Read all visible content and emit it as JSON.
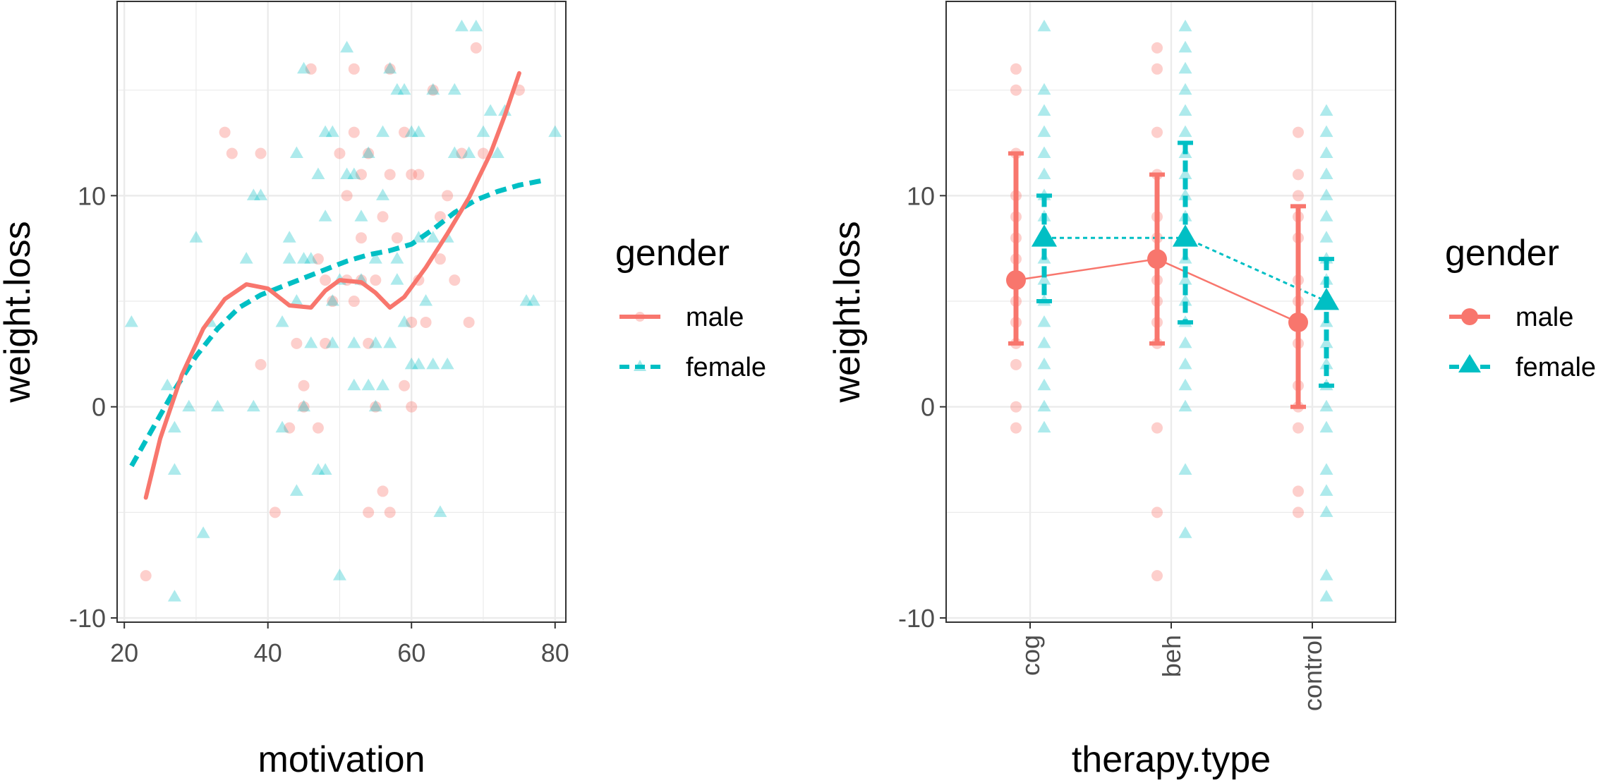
{
  "colors": {
    "male": "#F8766D",
    "female": "#00BFC4",
    "grid": "#EBEBEB",
    "border": "#333333",
    "tick_text": "#4D4D4D"
  },
  "chart_data": [
    {
      "type": "scatter",
      "xlabel": "motivation",
      "ylabel": "weight.loss",
      "xlim": [
        19,
        81.5
      ],
      "ylim": [
        -10.2,
        19.2
      ],
      "x_ticks": [
        "20",
        "40",
        "60",
        "80"
      ],
      "y_ticks": [
        "-10",
        "0",
        "10"
      ],
      "grid": true,
      "legend": {
        "title": "gender",
        "position": "right",
        "entries": [
          "male",
          "female"
        ]
      },
      "series": [
        {
          "name": "male",
          "points": [
            [
              23,
              -8
            ],
            [
              34,
              13
            ],
            [
              35,
              12
            ],
            [
              39,
              12
            ],
            [
              39,
              2
            ],
            [
              41,
              -5
            ],
            [
              43,
              -1
            ],
            [
              44,
              3
            ],
            [
              45,
              1
            ],
            [
              45,
              0
            ],
            [
              46,
              16
            ],
            [
              47,
              -1
            ],
            [
              47,
              7
            ],
            [
              48,
              6
            ],
            [
              48,
              3
            ],
            [
              49,
              5
            ],
            [
              50,
              12
            ],
            [
              51,
              10
            ],
            [
              51,
              6
            ],
            [
              52,
              16
            ],
            [
              52,
              13
            ],
            [
              52,
              5
            ],
            [
              53,
              11
            ],
            [
              53,
              8
            ],
            [
              53,
              6
            ],
            [
              54,
              12
            ],
            [
              54,
              3
            ],
            [
              54,
              -5
            ],
            [
              55,
              0
            ],
            [
              55,
              6
            ],
            [
              56,
              9
            ],
            [
              56,
              -4
            ],
            [
              57,
              16
            ],
            [
              57,
              -5
            ],
            [
              57,
              11
            ],
            [
              58,
              8
            ],
            [
              59,
              13
            ],
            [
              59,
              1
            ],
            [
              60,
              11
            ],
            [
              60,
              0
            ],
            [
              60,
              4
            ],
            [
              61,
              11
            ],
            [
              61,
              6
            ],
            [
              62,
              4
            ],
            [
              63,
              15
            ],
            [
              64,
              9
            ],
            [
              64,
              7
            ],
            [
              65,
              10
            ],
            [
              66,
              6
            ],
            [
              67,
              12
            ],
            [
              68,
              4
            ],
            [
              69,
              17
            ],
            [
              70,
              12
            ],
            [
              75,
              15
            ]
          ],
          "smooth": [
            [
              23,
              -4.3
            ],
            [
              25,
              -1.5
            ],
            [
              28,
              1.5
            ],
            [
              31,
              3.7
            ],
            [
              34,
              5.1
            ],
            [
              37,
              5.8
            ],
            [
              40,
              5.6
            ],
            [
              43,
              4.8
            ],
            [
              46,
              4.7
            ],
            [
              48,
              5.5
            ],
            [
              50,
              6.0
            ],
            [
              53,
              5.9
            ],
            [
              55,
              5.4
            ],
            [
              57,
              4.7
            ],
            [
              59,
              5.2
            ],
            [
              62,
              6.6
            ],
            [
              65,
              8.2
            ],
            [
              68,
              9.9
            ],
            [
              71,
              12.0
            ],
            [
              73,
              13.8
            ],
            [
              75,
              15.8
            ]
          ]
        },
        {
          "name": "female",
          "points": [
            [
              21,
              4
            ],
            [
              26,
              1
            ],
            [
              27,
              -1
            ],
            [
              27,
              -3
            ],
            [
              27,
              -9
            ],
            [
              29,
              0
            ],
            [
              30,
              8
            ],
            [
              31,
              -6
            ],
            [
              32,
              4
            ],
            [
              33,
              0
            ],
            [
              37,
              7
            ],
            [
              38,
              10
            ],
            [
              38,
              0
            ],
            [
              39,
              10
            ],
            [
              42,
              -1
            ],
            [
              42,
              4
            ],
            [
              43,
              7
            ],
            [
              43,
              8
            ],
            [
              44,
              5
            ],
            [
              44,
              12
            ],
            [
              44,
              -4
            ],
            [
              45,
              16
            ],
            [
              45,
              7
            ],
            [
              45,
              0
            ],
            [
              46,
              7
            ],
            [
              46,
              3
            ],
            [
              47,
              -3
            ],
            [
              47,
              11
            ],
            [
              48,
              13
            ],
            [
              48,
              9
            ],
            [
              48,
              -3
            ],
            [
              49,
              3
            ],
            [
              49,
              5
            ],
            [
              49,
              13
            ],
            [
              50,
              6
            ],
            [
              50,
              -8
            ],
            [
              51,
              17
            ],
            [
              51,
              11
            ],
            [
              52,
              3
            ],
            [
              52,
              11
            ],
            [
              52,
              1
            ],
            [
              53,
              6
            ],
            [
              53,
              9
            ],
            [
              54,
              12
            ],
            [
              54,
              1
            ],
            [
              55,
              0
            ],
            [
              55,
              7
            ],
            [
              55,
              3
            ],
            [
              56,
              10
            ],
            [
              56,
              13
            ],
            [
              56,
              1
            ],
            [
              57,
              16
            ],
            [
              57,
              3
            ],
            [
              58,
              15
            ],
            [
              58,
              6
            ],
            [
              58,
              7
            ],
            [
              59,
              15
            ],
            [
              59,
              4
            ],
            [
              60,
              13
            ],
            [
              60,
              2
            ],
            [
              61,
              13
            ],
            [
              61,
              8
            ],
            [
              61,
              2
            ],
            [
              62,
              5
            ],
            [
              63,
              15
            ],
            [
              63,
              8
            ],
            [
              63,
              2
            ],
            [
              64,
              -5
            ],
            [
              65,
              8
            ],
            [
              65,
              2
            ],
            [
              66,
              12
            ],
            [
              66,
              15
            ],
            [
              67,
              18
            ],
            [
              68,
              12
            ],
            [
              69,
              18
            ],
            [
              70,
              13
            ],
            [
              71,
              14
            ],
            [
              72,
              12
            ],
            [
              73,
              14
            ],
            [
              76,
              5
            ],
            [
              77,
              5
            ],
            [
              80,
              13
            ]
          ],
          "smooth": [
            [
              21,
              -2.8
            ],
            [
              24,
              -1.0
            ],
            [
              27,
              0.8
            ],
            [
              30,
              2.4
            ],
            [
              33,
              3.7
            ],
            [
              36,
              4.7
            ],
            [
              39,
              5.3
            ],
            [
              42,
              5.7
            ],
            [
              45,
              6.1
            ],
            [
              48,
              6.5
            ],
            [
              51,
              6.9
            ],
            [
              54,
              7.2
            ],
            [
              57,
              7.4
            ],
            [
              60,
              7.7
            ],
            [
              63,
              8.4
            ],
            [
              66,
              9.2
            ],
            [
              69,
              9.8
            ],
            [
              72,
              10.2
            ],
            [
              75,
              10.5
            ],
            [
              78,
              10.7
            ]
          ]
        }
      ]
    },
    {
      "type": "scatter",
      "xlabel": "therapy.type",
      "ylabel": "weight.loss",
      "categories": [
        "cog",
        "beh",
        "control"
      ],
      "ylim": [
        -10.2,
        19.2
      ],
      "y_ticks": [
        "-10",
        "0",
        "10"
      ],
      "grid": true,
      "legend": {
        "title": "gender",
        "position": "right",
        "entries": [
          "male",
          "female"
        ]
      },
      "series": [
        {
          "name": "male",
          "points": [
            [
              0,
              16
            ],
            [
              0,
              15
            ],
            [
              0,
              12
            ],
            [
              0,
              10
            ],
            [
              0,
              9
            ],
            [
              0,
              8
            ],
            [
              0,
              7
            ],
            [
              0,
              6
            ],
            [
              0,
              5
            ],
            [
              0,
              4
            ],
            [
              0,
              3
            ],
            [
              0,
              2
            ],
            [
              0,
              0
            ],
            [
              0,
              -1
            ],
            [
              1,
              17
            ],
            [
              1,
              16
            ],
            [
              1,
              13
            ],
            [
              1,
              11
            ],
            [
              1,
              9
            ],
            [
              1,
              8
            ],
            [
              1,
              7
            ],
            [
              1,
              6
            ],
            [
              1,
              5
            ],
            [
              1,
              4
            ],
            [
              1,
              3
            ],
            [
              1,
              -1
            ],
            [
              1,
              -5
            ],
            [
              1,
              -8
            ],
            [
              2,
              13
            ],
            [
              2,
              11
            ],
            [
              2,
              10
            ],
            [
              2,
              9
            ],
            [
              2,
              8
            ],
            [
              2,
              6
            ],
            [
              2,
              5
            ],
            [
              2,
              4
            ],
            [
              2,
              3
            ],
            [
              2,
              1
            ],
            [
              2,
              0
            ],
            [
              2,
              -1
            ],
            [
              2,
              -4
            ],
            [
              2,
              -5
            ]
          ],
          "means": [
            6,
            7,
            4
          ],
          "err_low": [
            3,
            3,
            0
          ],
          "err_high": [
            12,
            11,
            9.5
          ]
        },
        {
          "name": "female",
          "points": [
            [
              0,
              18
            ],
            [
              0,
              15
            ],
            [
              0,
              14
            ],
            [
              0,
              13
            ],
            [
              0,
              12
            ],
            [
              0,
              11
            ],
            [
              0,
              10
            ],
            [
              0,
              9
            ],
            [
              0,
              8
            ],
            [
              0,
              7
            ],
            [
              0,
              6
            ],
            [
              0,
              5
            ],
            [
              0,
              4
            ],
            [
              0,
              3
            ],
            [
              0,
              2
            ],
            [
              0,
              1
            ],
            [
              0,
              0
            ],
            [
              0,
              -1
            ],
            [
              1,
              18
            ],
            [
              1,
              17
            ],
            [
              1,
              16
            ],
            [
              1,
              15
            ],
            [
              1,
              14
            ],
            [
              1,
              13
            ],
            [
              1,
              12
            ],
            [
              1,
              11
            ],
            [
              1,
              10
            ],
            [
              1,
              9
            ],
            [
              1,
              8
            ],
            [
              1,
              7
            ],
            [
              1,
              6
            ],
            [
              1,
              5
            ],
            [
              1,
              4
            ],
            [
              1,
              3
            ],
            [
              1,
              2
            ],
            [
              1,
              1
            ],
            [
              1,
              0
            ],
            [
              1,
              -3
            ],
            [
              1,
              -6
            ],
            [
              2,
              14
            ],
            [
              2,
              13
            ],
            [
              2,
              12
            ],
            [
              2,
              11
            ],
            [
              2,
              10
            ],
            [
              2,
              9
            ],
            [
              2,
              8
            ],
            [
              2,
              7
            ],
            [
              2,
              6
            ],
            [
              2,
              5
            ],
            [
              2,
              4
            ],
            [
              2,
              3
            ],
            [
              2,
              2
            ],
            [
              2,
              1
            ],
            [
              2,
              0
            ],
            [
              2,
              -1
            ],
            [
              2,
              -3
            ],
            [
              2,
              -4
            ],
            [
              2,
              -5
            ],
            [
              2,
              -8
            ],
            [
              2,
              -9
            ]
          ],
          "means": [
            8,
            8,
            5
          ],
          "err_low": [
            5,
            4,
            1
          ],
          "err_high": [
            10,
            12.5,
            7
          ]
        }
      ]
    }
  ]
}
